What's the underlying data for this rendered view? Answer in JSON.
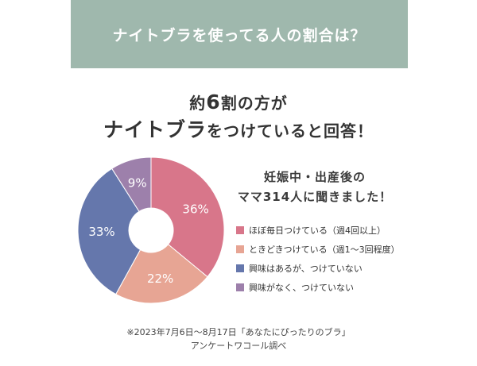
{
  "header": {
    "title": "ナイトブラを使ってる人の割合は？"
  },
  "headline": {
    "line1_prefix": "約",
    "line1_number": "6",
    "line1_suffix": "割の方が",
    "line2_main": "ナイトブラ",
    "line2_rest": "をつけていると回答！"
  },
  "survey": {
    "line1": "妊娠中・出産後の",
    "line2": "ママ314人に聞きました！"
  },
  "footnote": {
    "line1": "※2023年7月6日～8月17日「あなたにぴったりのブラ」",
    "line2": "アンケートワコール調べ"
  },
  "chart_data": {
    "type": "pie",
    "donut": true,
    "slices": [
      {
        "label": "ほぼ毎日つけている（週4回以上）",
        "value": 36,
        "display": "36%",
        "color": "#d8768a"
      },
      {
        "label": "ときどきつけている（週1～3回程度）",
        "value": 22,
        "display": "22%",
        "color": "#e7a594"
      },
      {
        "label": "興味はあるが、つけていない",
        "value": 33,
        "display": "33%",
        "color": "#6577ac"
      },
      {
        "label": "興味がなく、つけていない",
        "value": 9,
        "display": "9%",
        "color": "#9d80ab"
      }
    ]
  }
}
